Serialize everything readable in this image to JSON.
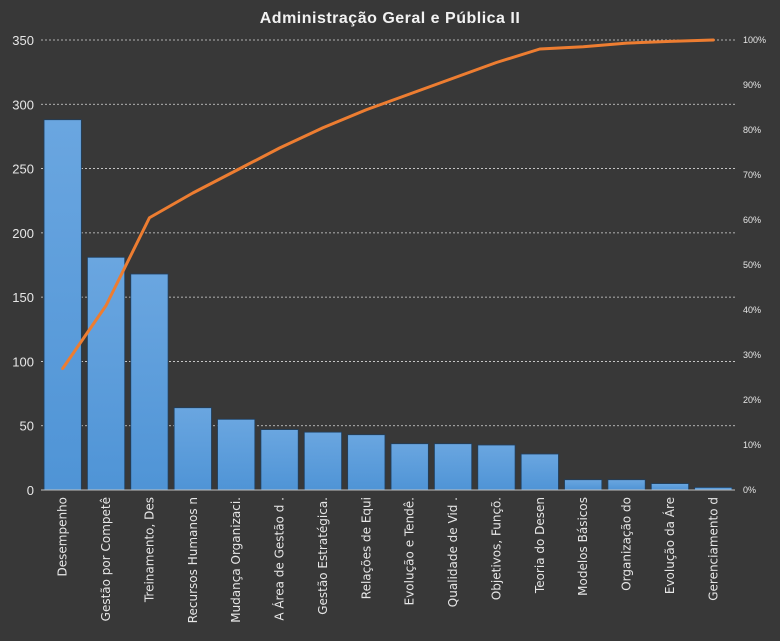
{
  "chart_data": {
    "type": "bar",
    "title": "Administração  Geral  e Pública II",
    "categories": [
      "Desempenho",
      "Gestão por Competê",
      "Treinamento, Des",
      "Recursos Humanos n",
      "Mudança Organizaci.",
      "A Área de Gestão d .",
      "Gestão Estratégica.",
      "Relações de Equi",
      "Evolução e Tendê.",
      "Qualidade de Vid .",
      "Objetivos, Funçõ.",
      "Teoria do Desen",
      "Modelos Básicos",
      "Organização do",
      "Evolução da Áre",
      "Gerenciamento d"
    ],
    "series": [
      {
        "type": "bar",
        "values": [
          288,
          181,
          168,
          64,
          55,
          47,
          45,
          43,
          36,
          36,
          35,
          28,
          8,
          8,
          5,
          2
        ],
        "color": "#4f94d6"
      },
      {
        "type": "line",
        "axis": "secondary",
        "values": [
          27,
          41,
          60.5,
          66,
          71,
          76,
          80.5,
          84.5,
          88,
          91.5,
          95,
          98,
          98.5,
          99.3,
          99.7,
          100
        ],
        "color": "#ed7d31"
      }
    ],
    "ylim": [
      0,
      350
    ],
    "yticks": [
      0,
      50,
      100,
      150,
      200,
      250,
      300,
      350
    ],
    "y2lim": [
      0,
      100
    ],
    "y2ticks": [
      "0%",
      "10%",
      "20%",
      "30%",
      "40%",
      "50%",
      "60%",
      "70%",
      "80%",
      "90%",
      "100%"
    ],
    "grid": true,
    "legend": "none",
    "background": "#383838"
  }
}
